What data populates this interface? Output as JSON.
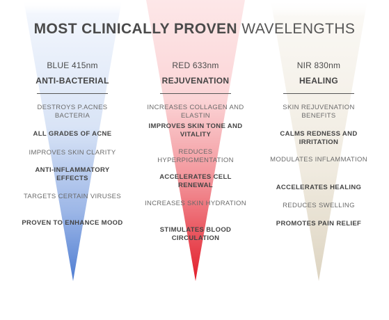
{
  "title": {
    "strong": "MOST CLINICALLY PROVEN",
    "light": "WAVELENGTHS"
  },
  "colors": {
    "blue": "#5c88d6",
    "red": "#e5343e",
    "nir": "#e8e1d2"
  },
  "columns": [
    {
      "wavelength": "BLUE 415nm",
      "category": "ANTI-BACTERIAL",
      "items": [
        {
          "text": "DESTROYS P.ACNES BACTERIA",
          "bold": false
        },
        {
          "text": "ALL GRADES OF ACNE",
          "bold": true
        },
        {
          "text": "IMPROVES SKIN CLARITY",
          "bold": false
        },
        {
          "text": "ANTI-INFLAMMATORY EFFECTS",
          "bold": true
        },
        {
          "text": "TARGETS CERTAIN VIRUSES",
          "bold": false
        },
        {
          "text": "PROVEN TO ENHANCE MOOD",
          "bold": true
        }
      ]
    },
    {
      "wavelength": "RED 633nm",
      "category": "REJUVENATION",
      "items": [
        {
          "text": "INCREASES COLLAGEN AND ELASTIN",
          "bold": false
        },
        {
          "text": "IMPROVES SKIN TONE AND VITALITY",
          "bold": true
        },
        {
          "text": "REDUCES HYPERPIGMENTATION",
          "bold": false
        },
        {
          "text": "ACCELERATES CELL RENEWAL",
          "bold": true
        },
        {
          "text": "INCREASES SKIN HYDRATION",
          "bold": false
        },
        {
          "text": "STIMULATES BLOOD CIRCULATION",
          "bold": true
        }
      ]
    },
    {
      "wavelength": "NIR 830nm",
      "category": "HEALING",
      "items": [
        {
          "text": "SKIN REJUVENATION BENEFITS",
          "bold": false
        },
        {
          "text": "CALMS REDNESS AND IRRITATION",
          "bold": true
        },
        {
          "text": "MODULATES INFLAMMATION",
          "bold": false
        },
        {
          "text": "ACCELERATES HEALING",
          "bold": true
        },
        {
          "text": "REDUCES SWELLING",
          "bold": false
        },
        {
          "text": "PROMOTES PAIN RELIEF",
          "bold": true
        }
      ]
    }
  ]
}
